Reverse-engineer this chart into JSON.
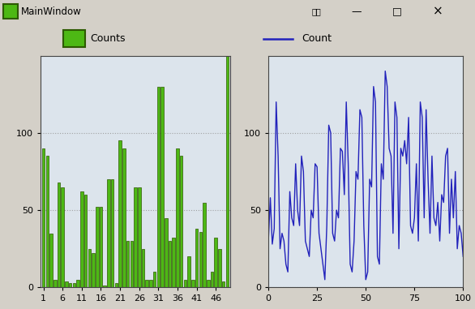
{
  "bar_color_face": "#4db814",
  "bar_color_edge": "#2d5a00",
  "line_color": "#2222bb",
  "bg_color": "#d4d0c8",
  "plot_bg_color": "#dce4ec",
  "title_bar": "Counts",
  "title_line": "Count",
  "bar_ylim": [
    0,
    150
  ],
  "line_ylim": [
    0,
    150
  ],
  "bar_yticks": [
    0,
    50,
    100
  ],
  "line_yticks": [
    0,
    50,
    100
  ],
  "bar_xticks": [
    1,
    6,
    11,
    16,
    21,
    26,
    31,
    36,
    41,
    46
  ],
  "line_xticks": [
    0,
    25,
    50,
    75,
    100
  ],
  "window_title": "MainWindow",
  "titlebar_color": "#4a90d9",
  "bar_values": [
    90,
    85,
    35,
    5,
    68,
    65,
    4,
    3,
    3,
    5,
    62,
    60,
    25,
    22,
    52,
    52,
    1,
    70,
    70,
    3,
    95,
    90,
    30,
    30,
    65,
    65,
    25,
    5,
    5,
    10,
    130,
    130,
    45,
    30,
    32,
    90,
    85,
    5,
    20,
    5,
    38,
    36,
    55,
    5,
    10,
    32,
    25,
    4,
    150
  ],
  "line_values": [
    30,
    58,
    28,
    38,
    120,
    85,
    25,
    35,
    30,
    15,
    10,
    62,
    45,
    40,
    80,
    50,
    40,
    85,
    75,
    30,
    25,
    20,
    50,
    45,
    80,
    78,
    35,
    25,
    15,
    5,
    40,
    105,
    100,
    35,
    30,
    50,
    45,
    90,
    88,
    60,
    120,
    80,
    15,
    10,
    30,
    75,
    70,
    115,
    110,
    40,
    5,
    10,
    70,
    65,
    130,
    120,
    20,
    15,
    80,
    70,
    140,
    130,
    90,
    85,
    35,
    120,
    110,
    25,
    90,
    85,
    95,
    80,
    110,
    40,
    35,
    45,
    80,
    30,
    120,
    110,
    45,
    115,
    70,
    35,
    85,
    45,
    40,
    55,
    30,
    60,
    55,
    85,
    90,
    35,
    70,
    45,
    75,
    25,
    40,
    35,
    20
  ]
}
